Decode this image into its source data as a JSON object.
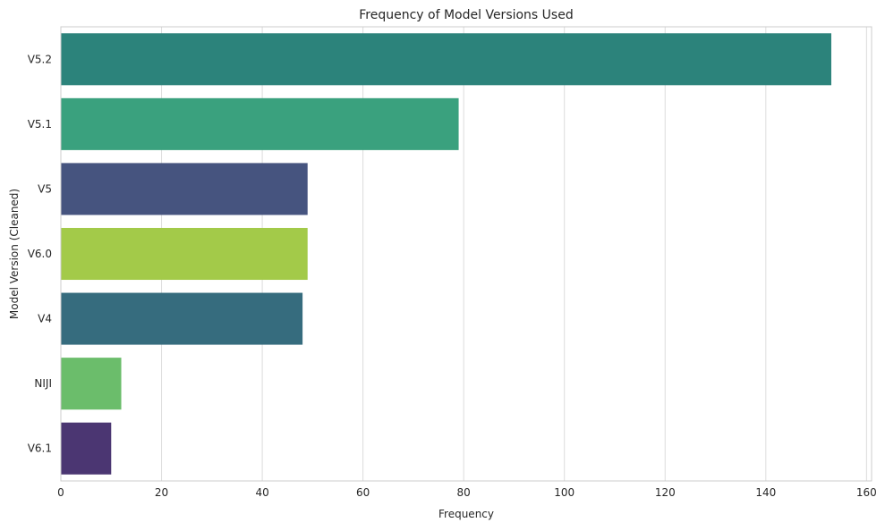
{
  "chart_data": {
    "type": "bar",
    "orientation": "horizontal",
    "title": "Frequency of Model Versions Used",
    "xlabel": "Frequency",
    "ylabel": "Model Version (Cleaned)",
    "xlim": [
      0,
      161
    ],
    "xticks": [
      0,
      20,
      40,
      60,
      80,
      100,
      120,
      140,
      160
    ],
    "grid": "vertical",
    "categories": [
      "V5.2",
      "V5.1",
      "V5",
      "V6.0",
      "V4",
      "NIJI",
      "V6.1"
    ],
    "values": [
      153,
      79,
      49,
      49,
      48,
      12,
      10
    ],
    "colors": [
      "#2c837b",
      "#3aa17e",
      "#46547f",
      "#a3ca49",
      "#366c7e",
      "#6bbd6b",
      "#4b3672"
    ]
  }
}
